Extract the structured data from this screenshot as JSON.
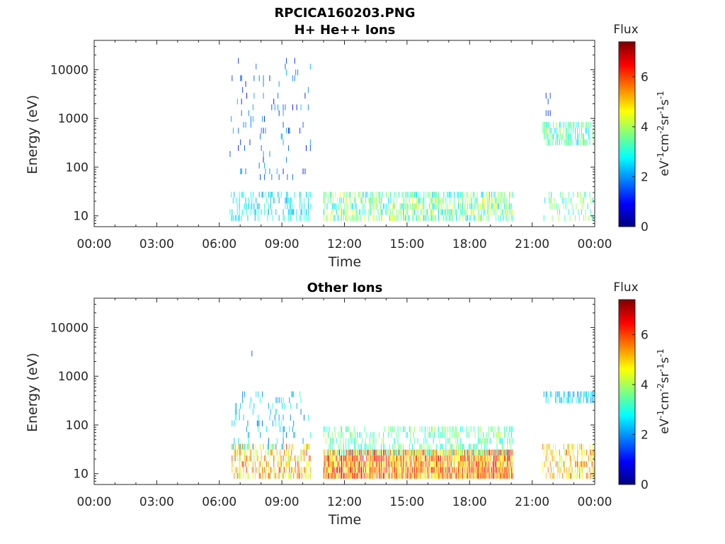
{
  "title": "RPCICA160203.PNG",
  "colormap": [
    "#00007f",
    "#0000ff",
    "#007fff",
    "#00ffff",
    "#7fff7f",
    "#ffff00",
    "#ff7f00",
    "#ff0000",
    "#7f0000"
  ],
  "chart_data": [
    {
      "type": "heatmap",
      "title": "H+ He++ Ions",
      "xlabel": "Time",
      "ylabel": "Energy (eV)",
      "x_tick_labels": [
        "00:00",
        "03:00",
        "06:00",
        "09:00",
        "12:00",
        "15:00",
        "18:00",
        "21:00",
        "00:00"
      ],
      "x_ticks_hours": [
        0,
        3,
        6,
        9,
        12,
        15,
        18,
        21,
        24
      ],
      "xlim_hours": [
        0,
        24
      ],
      "y_scale": "log",
      "y_tick_labels": [
        "10",
        "100",
        "1000",
        "10000"
      ],
      "y_ticks": [
        10,
        100,
        1000,
        10000
      ],
      "ylim": [
        6,
        40000
      ],
      "colorbar": {
        "label": "Flux",
        "units": "eV-1cm-2sr-1s-1",
        "tick_labels": [
          "0",
          "2",
          "4",
          "6"
        ],
        "ticks": [
          0,
          2,
          4,
          6
        ],
        "range": [
          0,
          7.4
        ]
      },
      "regions": [
        {
          "start": 6.5,
          "end": 10.4,
          "emin": 8,
          "emax": 25,
          "flux": [
            2.0,
            3.3
          ],
          "density": 0.35
        },
        {
          "start": 6.5,
          "end": 10.4,
          "emin": 60,
          "emax": 15000,
          "flux": [
            0.9,
            2.3
          ],
          "density": 0.05
        },
        {
          "start": 11.0,
          "end": 20.1,
          "emin": 8,
          "emax": 30,
          "flux": [
            2.3,
            4.6
          ],
          "density": 0.55
        },
        {
          "start": 21.5,
          "end": 24.0,
          "emin": 300,
          "emax": 800,
          "flux": [
            2.4,
            4.2
          ],
          "density": 0.55
        },
        {
          "start": 21.5,
          "end": 24.0,
          "emin": 8,
          "emax": 25,
          "flux": [
            2.5,
            4.2
          ],
          "density": 0.2
        },
        {
          "start": 21.5,
          "end": 21.9,
          "emin": 1200,
          "emax": 3200,
          "flux": [
            1.0,
            2.0
          ],
          "density": 0.15
        }
      ]
    },
    {
      "type": "heatmap",
      "title": "Other Ions",
      "xlabel": "Time",
      "ylabel": "Energy (eV)",
      "x_tick_labels": [
        "00:00",
        "03:00",
        "06:00",
        "09:00",
        "12:00",
        "15:00",
        "18:00",
        "21:00",
        "00:00"
      ],
      "x_ticks_hours": [
        0,
        3,
        6,
        9,
        12,
        15,
        18,
        21,
        24
      ],
      "xlim_hours": [
        0,
        24
      ],
      "y_scale": "log",
      "y_tick_labels": [
        "10",
        "100",
        "1000",
        "10000"
      ],
      "y_ticks": [
        10,
        100,
        1000,
        10000
      ],
      "ylim": [
        6,
        40000
      ],
      "colorbar": {
        "label": "Flux",
        "units": "eV-1cm-2sr-1s-1",
        "tick_labels": [
          "0",
          "2",
          "4",
          "6"
        ],
        "ticks": [
          0,
          2,
          4,
          6
        ],
        "range": [
          0,
          7.4
        ]
      },
      "regions": [
        {
          "start": 6.6,
          "end": 10.4,
          "emin": 8,
          "emax": 35,
          "flux": [
            3.8,
            6.2
          ],
          "density": 0.5
        },
        {
          "start": 6.6,
          "end": 10.4,
          "emin": 35,
          "emax": 400,
          "flux": [
            1.6,
            3.2
          ],
          "density": 0.12
        },
        {
          "start": 11.0,
          "end": 20.1,
          "emin": 8,
          "emax": 28,
          "flux": [
            4.2,
            6.8
          ],
          "density": 0.95
        },
        {
          "start": 11.0,
          "end": 20.1,
          "emin": 28,
          "emax": 80,
          "flux": [
            2.6,
            4.2
          ],
          "density": 0.35
        },
        {
          "start": 21.5,
          "end": 24.0,
          "emin": 8,
          "emax": 40,
          "flux": [
            3.8,
            6.0
          ],
          "density": 0.5
        },
        {
          "start": 21.5,
          "end": 24.0,
          "emin": 320,
          "emax": 450,
          "flux": [
            2.0,
            3.0
          ],
          "density": 0.6
        },
        {
          "start": 7.3,
          "end": 8.4,
          "emin": 2400,
          "emax": 3000,
          "flux": [
            1.0,
            1.5
          ],
          "density": 0.05
        }
      ]
    }
  ]
}
